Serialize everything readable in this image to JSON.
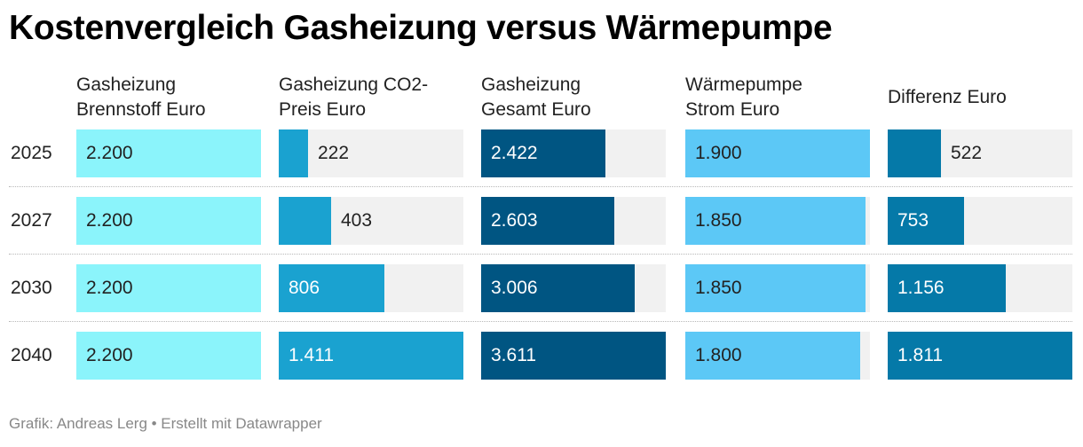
{
  "title": "Kostenvergleich Gasheizung versus Wärmepumpe",
  "footer": "Grafik: Andreas Lerg • Erstellt mit Datawrapper",
  "chart_data": {
    "type": "table",
    "columns": [
      {
        "header_lines": [
          "Gasheizung",
          "Brennstoff Euro"
        ],
        "color": "#8bf4fb",
        "text_color": "#222222",
        "max": 2200
      },
      {
        "header_lines": [
          "Gasheizung CO2-",
          "Preis Euro"
        ],
        "color": "#1aa2d0",
        "text_color": "#ffffff",
        "max": 1411
      },
      {
        "header_lines": [
          "Gasheizung",
          "Gesamt Euro"
        ],
        "color": "#005582",
        "text_color": "#ffffff",
        "max": 3611
      },
      {
        "header_lines": [
          "Wärmepumpe",
          "Strom Euro"
        ],
        "color": "#5cc8f6",
        "text_color": "#222222",
        "max": 1900
      },
      {
        "header_lines": [
          "Differenz Euro"
        ],
        "color": "#0579a8",
        "text_color": "#ffffff",
        "max": 1811
      }
    ],
    "rows": [
      {
        "label": "2025",
        "values": [
          2200,
          222,
          2422,
          1900,
          522
        ],
        "display": [
          "2.200",
          "222",
          "2.422",
          "1.900",
          "522"
        ]
      },
      {
        "label": "2027",
        "values": [
          2200,
          403,
          2603,
          1850,
          753
        ],
        "display": [
          "2.200",
          "403",
          "2.603",
          "1.850",
          "753"
        ]
      },
      {
        "label": "2030",
        "values": [
          2200,
          806,
          3006,
          1850,
          1156
        ],
        "display": [
          "2.200",
          "806",
          "3.006",
          "1.850",
          "1.156"
        ]
      },
      {
        "label": "2040",
        "values": [
          2200,
          1411,
          3611,
          1800,
          1811
        ],
        "display": [
          "2.200",
          "1.411",
          "3.611",
          "1.800",
          "1.811"
        ]
      }
    ]
  }
}
